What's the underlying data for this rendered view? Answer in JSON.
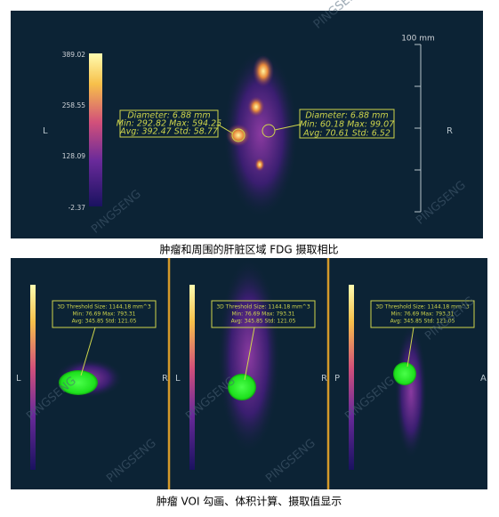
{
  "top_panel": {
    "colorbar_labels": [
      "389.02",
      "258.55",
      "128.09",
      "-2.37"
    ],
    "left_label": "L",
    "right_label": "R",
    "scale_label": "100 mm",
    "roi_left": [
      "Diameter: 6.88 mm",
      "Min: 292.82 Max: 594.25",
      "Avg: 392.47 Std: 58.77"
    ],
    "roi_right": [
      "Diameter: 6.88 mm",
      "Min: 60.18 Max: 99.07",
      "Avg: 70.61 Std: 6.52"
    ],
    "watermark": "PINGSENG"
  },
  "top_caption": "肿瘤和周围的肝脏区域 FDG 摄取相比",
  "bottom_panels": [
    {
      "left_label": "L",
      "right_label": "R",
      "annotation": [
        "3D Threshold Size: 1144.18 mm^3",
        "Min: 76.69 Max: 793.31",
        "Avg: 345.85 Std: 121.05"
      ]
    },
    {
      "left_label": "L",
      "right_label": "R",
      "annotation": [
        "3D Threshold Size: 1144.18 mm^3",
        "Min: 76.69 Max: 793.31",
        "Avg: 345.85 Std: 121.05"
      ]
    },
    {
      "left_label": "P",
      "right_label": "A",
      "annotation": [
        "3D Threshold Size: 1144.18 mm^3",
        "Min: 76.69 Max: 793.31",
        "Avg: 345.85 Std: 121.05"
      ]
    }
  ],
  "bottom_caption": "肿瘤 VOI 勾画、体积计算、摄取值显示"
}
